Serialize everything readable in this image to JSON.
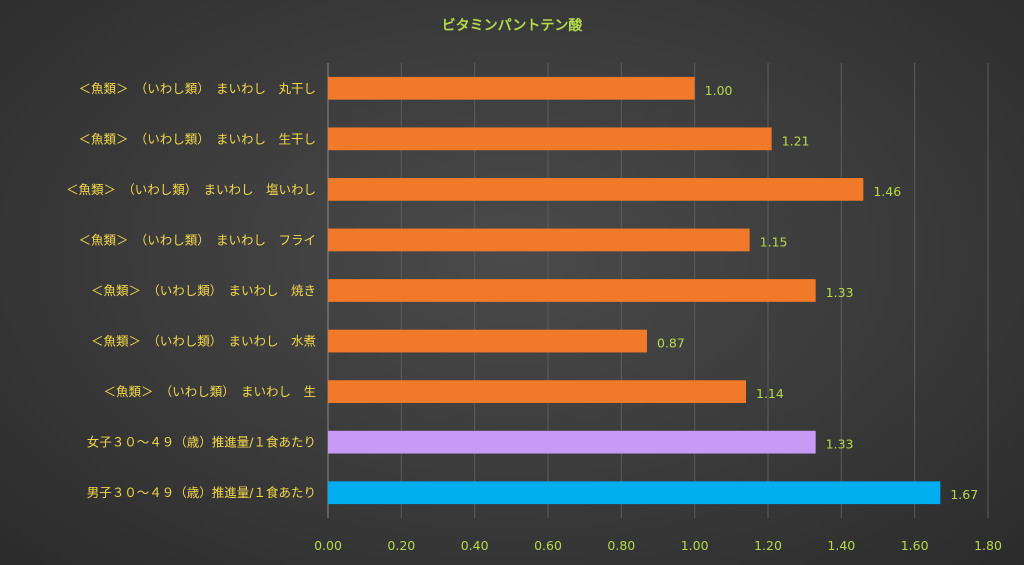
{
  "chart_data": {
    "type": "bar",
    "orientation": "horizontal",
    "title": "ビタミンパントテン酸",
    "categories": [
      "＜魚類＞　（いわし類）　まいわし　丸干し",
      "＜魚類＞　（いわし類）　まいわし　生干し",
      "＜魚類＞　（いわし類）　まいわし　塩いわし",
      "＜魚類＞　（いわし類）　まいわし　フライ",
      "＜魚類＞　（いわし類）　まいわし　焼き",
      "＜魚類＞　（いわし類）　まいわし　水煮",
      "＜魚類＞　（いわし類）　まいわし　生",
      "女子３０～４９（歳）推進量/１食あたり",
      "男子３０～４９（歳）推進量/１食あたり"
    ],
    "values": [
      1.0,
      1.21,
      1.46,
      1.15,
      1.33,
      0.87,
      1.14,
      1.33,
      1.67
    ],
    "value_labels": [
      "1.00",
      "1.21",
      "1.46",
      "1.15",
      "1.33",
      "0.87",
      "1.14",
      "1.33",
      "1.67"
    ],
    "bar_colors": [
      "#f07a2a",
      "#f07a2a",
      "#f07a2a",
      "#f07a2a",
      "#f07a2a",
      "#f07a2a",
      "#f07a2a",
      "#c79af5",
      "#00aeef"
    ],
    "x_ticks": [
      "0.00",
      "0.20",
      "0.40",
      "0.60",
      "0.80",
      "1.00",
      "1.20",
      "1.40",
      "1.60",
      "1.80"
    ],
    "xlim": [
      0,
      1.8
    ],
    "grid": true,
    "legend": "none",
    "colors": {
      "title": "#b5d94a",
      "category_labels": "#f2d84a",
      "tick_labels": "#b5d94a",
      "value_labels": "#b5d94a",
      "background": "#3a3a3a"
    }
  }
}
